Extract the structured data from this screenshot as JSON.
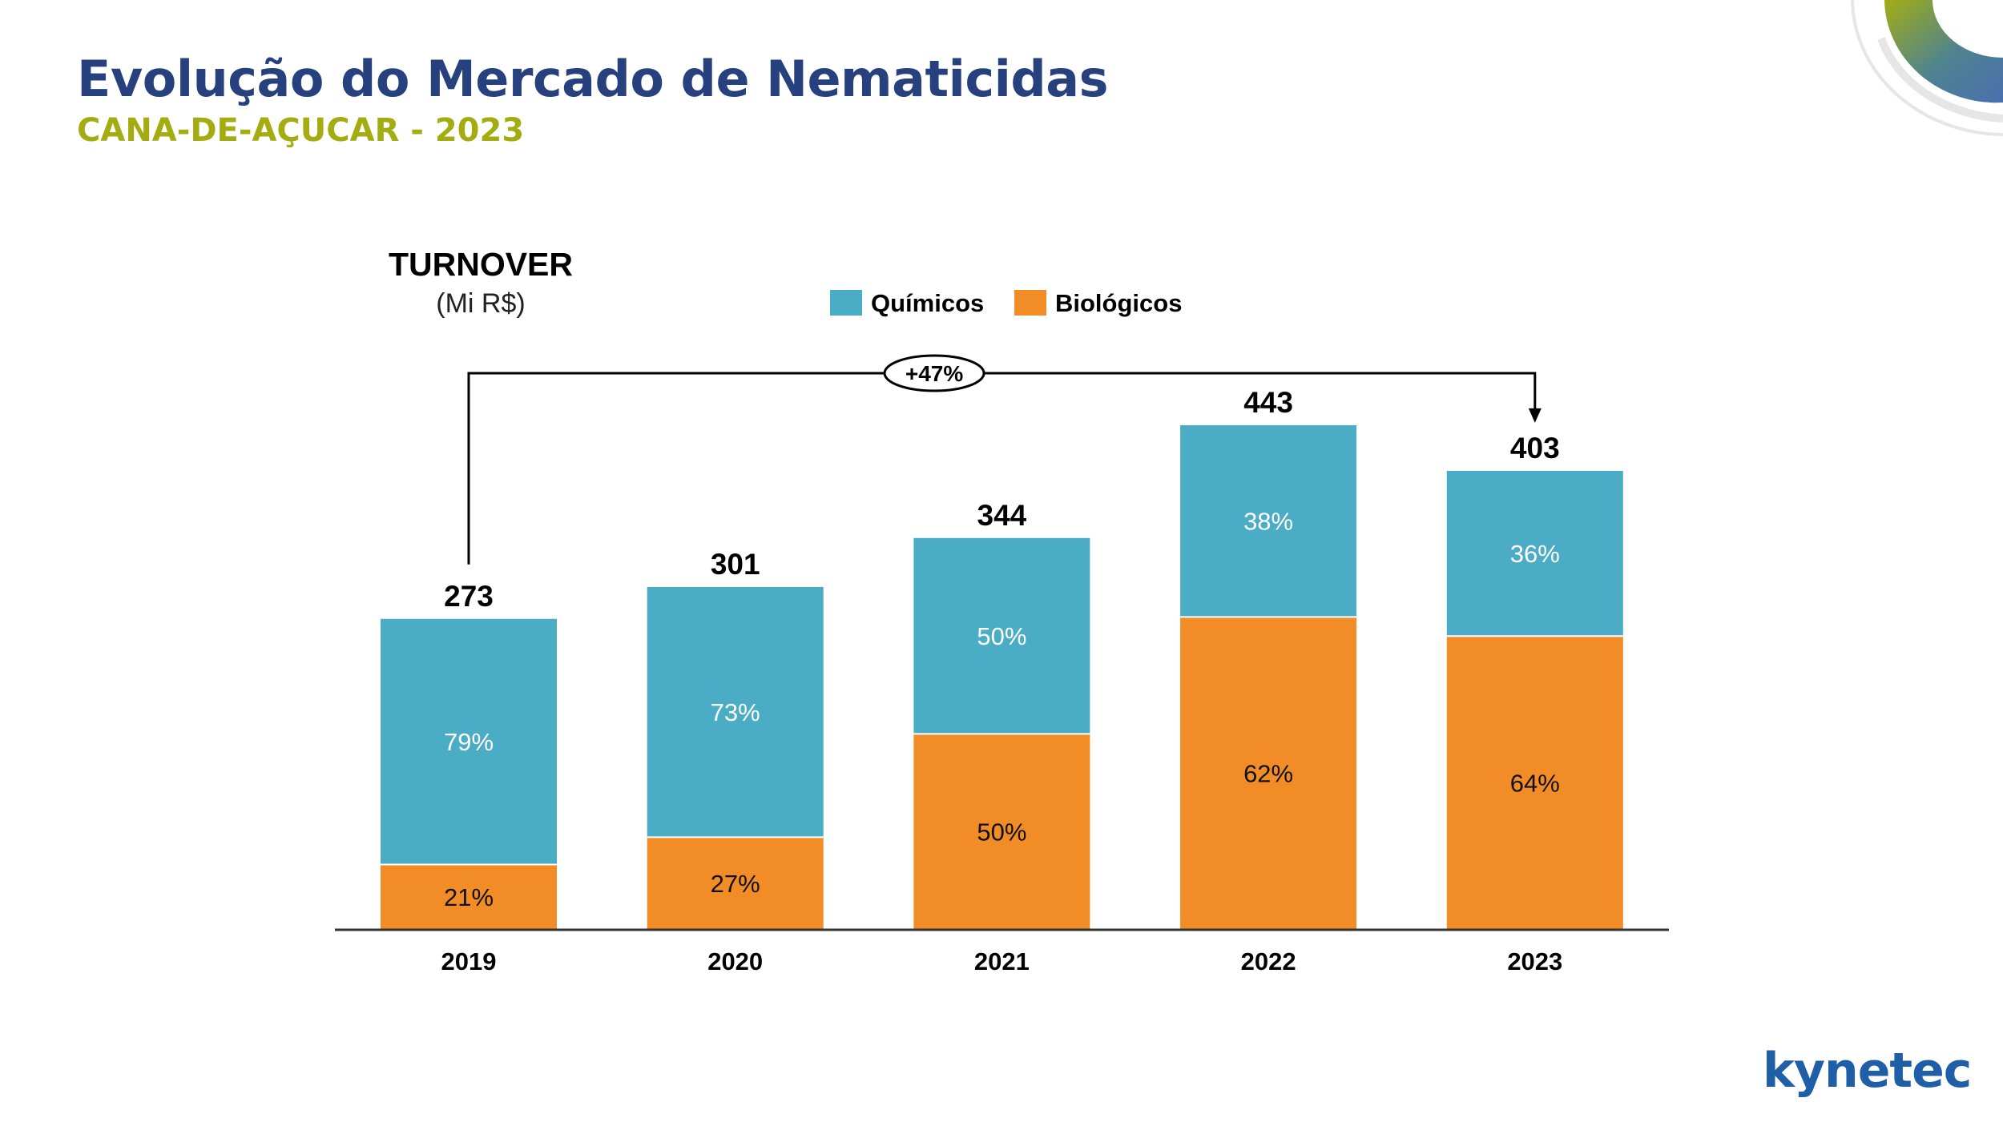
{
  "header": {
    "title": "Evolução do Mercado de Nematicidas",
    "subtitle": "CANA-DE-AÇUCAR - 2023"
  },
  "logo": {
    "text": "kynetec"
  },
  "colors": {
    "title": "#27417f",
    "subtitle": "#a3ad12",
    "quimicos": "#4bacc6",
    "biologicos": "#f28c26",
    "text": "#000000"
  },
  "chart_data": {
    "type": "bar",
    "stacked": true,
    "title": "TURNOVER",
    "ylabel": "(Mi R$)",
    "xlabel": "",
    "categories": [
      "2019",
      "2020",
      "2021",
      "2022",
      "2023"
    ],
    "totals": [
      273,
      301,
      344,
      443,
      403
    ],
    "series": [
      {
        "name": "Químicos",
        "color": "#4bacc6",
        "values_pct": [
          79,
          73,
          50,
          38,
          36
        ],
        "labels": [
          "79%",
          "73%",
          "50%",
          "38%",
          "36%"
        ]
      },
      {
        "name": "Biológicos",
        "color": "#f28c26",
        "values_pct": [
          21,
          27,
          50,
          62,
          64
        ],
        "labels": [
          "21%",
          "27%",
          "50%",
          "62%",
          "64%"
        ]
      }
    ],
    "stack_order_bottom_to_top": [
      "Biológicos",
      "Químicos"
    ],
    "legend": [
      "Químicos",
      "Biológicos"
    ],
    "legend_position": "top-center",
    "annotation": {
      "text": "+47%",
      "from": "2019",
      "to": "2023"
    },
    "ylim": [
      0,
      443
    ],
    "grid": false
  }
}
